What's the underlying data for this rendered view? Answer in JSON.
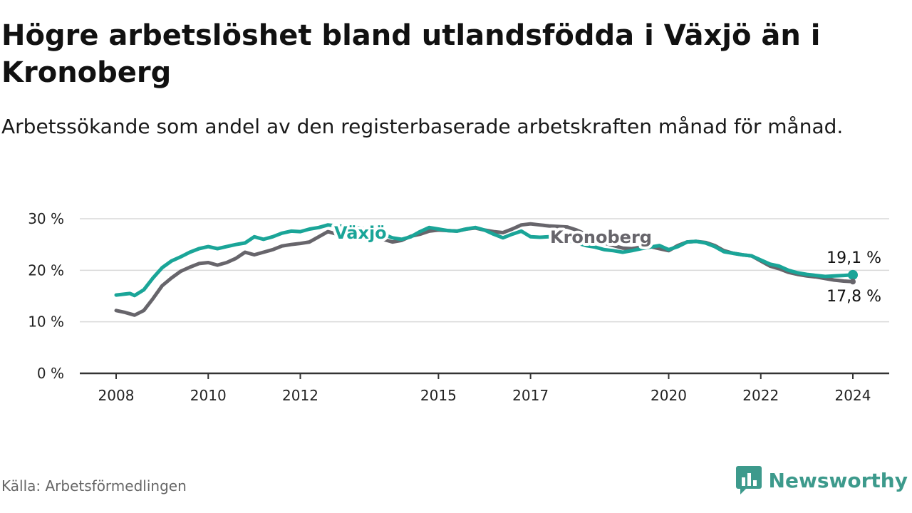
{
  "title": "Högre arbetslöshet bland utlandsfödda i Växjö än i Kronoberg",
  "subtitle": "Arbetssökande som andel av den registerbaserade arbetskraften månad för månad.",
  "source": "Källa: Arbetsförmedlingen",
  "brand": {
    "name": "Newsworthy",
    "logo_icon": "bar-chart-icon"
  },
  "colors": {
    "vaxjo": "#1aa598",
    "kronoberg": "#67656b",
    "grid": "#d9d9d9",
    "axis": "#333333"
  },
  "chart_data": {
    "type": "line",
    "title": "Högre arbetslöshet bland utlandsfödda i Växjö än i Kronoberg",
    "xlabel": "",
    "ylabel": "",
    "x_range": [
      2008,
      2024.2
    ],
    "ylim": [
      0,
      30
    ],
    "y_ticks": [
      0,
      10,
      20,
      30
    ],
    "y_tick_labels": [
      "0 %",
      "10 %",
      "20 %",
      "30 %"
    ],
    "x_ticks": [
      2008,
      2010,
      2012,
      2015,
      2017,
      2020,
      2022,
      2024
    ],
    "x_tick_labels": [
      "2008",
      "2010",
      "2012",
      "2015",
      "2017",
      "2020",
      "2022",
      "2024"
    ],
    "grid": true,
    "series": [
      {
        "name": "Växjö",
        "label": "Växjö",
        "color": "#1aa598",
        "end_label": "19,1 %",
        "x": [
          2008.0,
          2008.3,
          2008.4,
          2008.6,
          2008.8,
          2009.0,
          2009.2,
          2009.4,
          2009.6,
          2009.8,
          2010.0,
          2010.2,
          2010.4,
          2010.6,
          2010.8,
          2011.0,
          2011.2,
          2011.4,
          2011.6,
          2011.8,
          2012.0,
          2012.2,
          2012.4,
          2012.6,
          2012.8,
          2013.0,
          2013.2,
          2013.4,
          2013.6,
          2013.8,
          2014.0,
          2014.2,
          2014.4,
          2014.6,
          2014.8,
          2015.0,
          2015.2,
          2015.4,
          2015.6,
          2015.8,
          2016.0,
          2016.2,
          2016.4,
          2016.6,
          2016.8,
          2017.0,
          2017.2,
          2017.4,
          2017.6,
          2017.8,
          2018.0,
          2018.2,
          2018.4,
          2018.6,
          2018.8,
          2019.0,
          2019.2,
          2019.4,
          2019.6,
          2019.8,
          2020.0,
          2020.2,
          2020.4,
          2020.6,
          2020.8,
          2021.0,
          2021.2,
          2021.4,
          2021.6,
          2021.8,
          2022.0,
          2022.2,
          2022.4,
          2022.6,
          2022.8,
          2023.0,
          2023.2,
          2023.4,
          2023.6,
          2023.8,
          2024.0
        ],
        "values": [
          15.2,
          15.5,
          15.1,
          16.2,
          18.5,
          20.5,
          21.8,
          22.6,
          23.5,
          24.2,
          24.6,
          24.2,
          24.6,
          25.0,
          25.3,
          26.5,
          26.0,
          26.5,
          27.2,
          27.6,
          27.5,
          28.0,
          28.3,
          28.8,
          28.6,
          28.5,
          28.3,
          28.0,
          27.5,
          27.0,
          26.3,
          26.0,
          26.5,
          27.5,
          28.3,
          28.0,
          27.7,
          27.6,
          28.0,
          28.3,
          27.8,
          27.0,
          26.3,
          27.0,
          27.6,
          26.5,
          26.4,
          26.5,
          26.3,
          25.8,
          25.3,
          24.8,
          24.5,
          24.0,
          23.8,
          23.5,
          23.8,
          24.2,
          24.5,
          24.8,
          24.0,
          24.6,
          25.5,
          25.6,
          25.3,
          24.6,
          23.6,
          23.3,
          23.0,
          22.8,
          22.0,
          21.2,
          20.8,
          20.0,
          19.5,
          19.2,
          19.0,
          18.8,
          18.9,
          19.0,
          19.1
        ]
      },
      {
        "name": "Kronoberg",
        "label": "Kronoberg",
        "color": "#67656b",
        "end_label": "17,8 %",
        "x": [
          2008.0,
          2008.2,
          2008.4,
          2008.6,
          2008.8,
          2009.0,
          2009.2,
          2009.4,
          2009.6,
          2009.8,
          2010.0,
          2010.2,
          2010.4,
          2010.6,
          2010.8,
          2011.0,
          2011.2,
          2011.4,
          2011.6,
          2011.8,
          2012.0,
          2012.2,
          2012.4,
          2012.6,
          2012.8,
          2013.0,
          2013.2,
          2013.4,
          2013.6,
          2013.8,
          2014.0,
          2014.2,
          2014.4,
          2014.6,
          2014.8,
          2015.0,
          2015.2,
          2015.4,
          2015.6,
          2015.8,
          2016.0,
          2016.2,
          2016.4,
          2016.6,
          2016.8,
          2017.0,
          2017.2,
          2017.4,
          2017.6,
          2017.8,
          2018.0,
          2018.2,
          2018.4,
          2018.6,
          2018.8,
          2019.0,
          2019.2,
          2019.4,
          2019.6,
          2019.8,
          2020.0,
          2020.2,
          2020.4,
          2020.6,
          2020.8,
          2021.0,
          2021.2,
          2021.4,
          2021.6,
          2021.8,
          2022.0,
          2022.2,
          2022.4,
          2022.6,
          2022.8,
          2023.0,
          2023.2,
          2023.4,
          2023.6,
          2023.8,
          2024.0
        ],
        "values": [
          12.2,
          11.8,
          11.3,
          12.2,
          14.5,
          17.0,
          18.5,
          19.8,
          20.6,
          21.3,
          21.5,
          21.0,
          21.5,
          22.3,
          23.5,
          23.0,
          23.5,
          24.0,
          24.7,
          25.0,
          25.2,
          25.5,
          26.5,
          27.5,
          27.0,
          26.5,
          26.8,
          27.0,
          26.5,
          26.0,
          25.5,
          25.8,
          26.6,
          27.0,
          27.6,
          27.8,
          27.7,
          27.6,
          28.0,
          28.2,
          27.8,
          27.5,
          27.3,
          28.0,
          28.8,
          29.0,
          28.8,
          28.6,
          28.5,
          28.4,
          27.8,
          27.0,
          26.0,
          25.3,
          24.8,
          24.3,
          24.2,
          24.5,
          24.6,
          24.2,
          23.8,
          24.8,
          25.5,
          25.6,
          25.4,
          24.8,
          23.8,
          23.3,
          23.0,
          22.8,
          21.8,
          20.8,
          20.3,
          19.6,
          19.2,
          18.9,
          18.7,
          18.4,
          18.1,
          17.9,
          17.8
        ]
      }
    ]
  }
}
